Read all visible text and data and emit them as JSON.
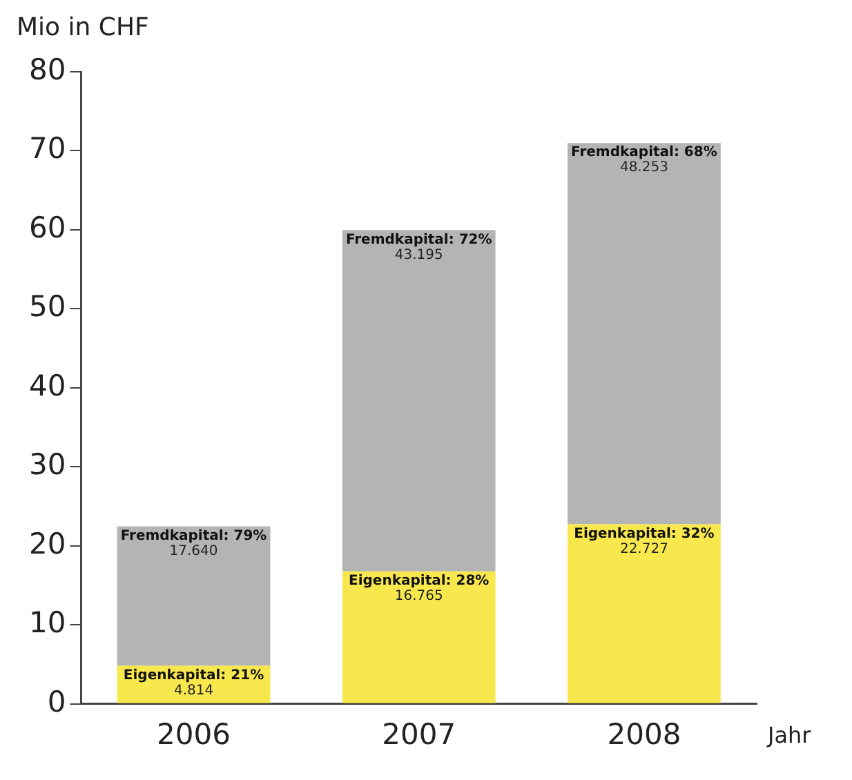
{
  "chart_data": {
    "type": "bar",
    "stacked": true,
    "ylabel": "Mio in CHF",
    "xlabel": "Jahr",
    "categories": [
      "2006",
      "2007",
      "2008"
    ],
    "series": [
      {
        "color": "#f8e84e",
        "values": [
          4.814,
          16.765,
          22.727
        ],
        "value_labels": [
          "Eigenkapital: 21%\n4.814",
          "Eigenkapital: 28%\n16.765",
          "Eigenkapital: 32%\n22.727"
        ]
      },
      {
        "color": "#b4b4b4",
        "values": [
          17.64,
          43.195,
          48.253
        ],
        "value_labels": [
          "Fremdkapital: 79%\n17.640",
          "Fremdkapital: 72%\n43.195",
          "Fremdkapital: 68%\n48.253"
        ]
      }
    ],
    "ylim": [
      0,
      80
    ],
    "yticks": [
      0,
      10,
      20,
      30,
      40,
      50,
      60,
      70,
      80
    ],
    "grid": false,
    "legend": false
  }
}
